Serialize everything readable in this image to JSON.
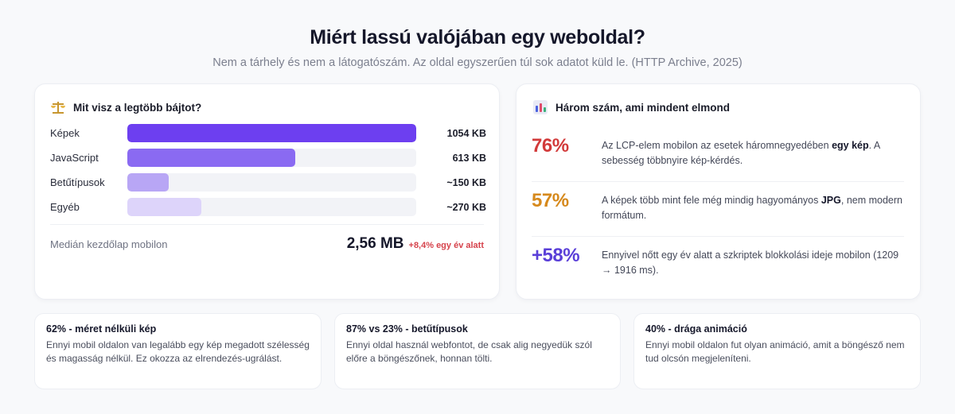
{
  "header": {
    "title": "Miért lassú valójában egy weboldal?",
    "subtitle": "Nem a tárhely és nem a látogatószám. Az oldal egyszerűen túl sok adatot küld le. (HTTP Archive, 2025)"
  },
  "bytes_card": {
    "icon": "scale-icon",
    "title": "Mit visz a legtöbb bájtot?",
    "rows": [
      {
        "label": "Képek",
        "value": "1054 KB",
        "fraction": 1.0,
        "color": "#6d3ff0"
      },
      {
        "label": "JavaScript",
        "value": "613 KB",
        "fraction": 0.58,
        "color": "#8a6af2"
      },
      {
        "label": "Betűtípusok",
        "value": "~150 KB",
        "fraction": 0.142,
        "color": "#b8a6f5"
      },
      {
        "label": "Egyéb",
        "value": "~270 KB",
        "fraction": 0.256,
        "color": "#ddd4fa"
      }
    ],
    "median_label": "Medián kezdőlap mobilon",
    "median_value": "2,56 MB",
    "median_delta": "+8,4% egy év alatt"
  },
  "numbers_card": {
    "icon": "bar-chart-icon",
    "title": "Három szám, ami mindent elmond",
    "stats": [
      {
        "num": "76%",
        "color": "#d23a3a",
        "pre": "Az LCP-elem mobilon az esetek háromnegyedében ",
        "bold": "egy kép",
        "post": ". A sebesség többnyire kép-kérdés."
      },
      {
        "num": "57%",
        "color": "#d6891c",
        "pre": "A képek több mint fele még mindig hagyományos ",
        "bold": "JPG",
        "post": ", nem modern formátum."
      },
      {
        "num": "+58%",
        "color": "#5a3fd8",
        "pre": "Ennyivel nőtt egy év alatt a szkriptek blokkolási ideje mobilon (1209 → 1916 ms).",
        "bold": "",
        "post": ""
      }
    ]
  },
  "mini_cards": [
    {
      "title": "62% - méret nélküli kép",
      "text": "Ennyi mobil oldalon van legalább egy kép megadott szélesség és magasság nélkül. Ez okozza az elrendezés-ugrálást."
    },
    {
      "title": "87% vs 23% - betűtípusok",
      "text": "Ennyi oldal használ webfontot, de csak alig negyedük szól előre a böngészőnek, honnan tölti."
    },
    {
      "title": "40% - drága animáció",
      "text": "Ennyi mobil oldalon fut olyan animáció, amit a böngésző nem tud olcsón megjeleníteni."
    }
  ]
}
